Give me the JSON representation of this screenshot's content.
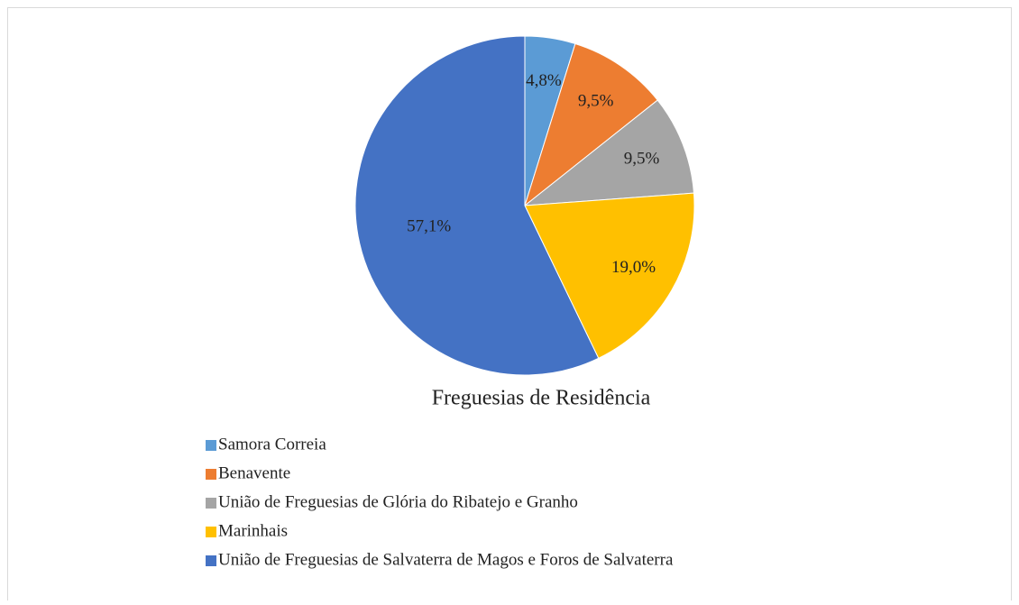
{
  "chart_data": {
    "type": "pie",
    "title": "Freguesias de Residência",
    "categories": [
      "Samora Correia",
      "Benavente",
      "União de Freguesias de Glória do Ribatejo e Granho",
      "Marinhais",
      "União de Freguesias de Salvaterra de Magos e Foros de Salvaterra"
    ],
    "values": [
      4.8,
      9.5,
      9.5,
      19.0,
      57.1
    ],
    "value_labels": [
      "4,8%",
      "9,5%",
      "9,5%",
      "19,0%",
      "57,1%"
    ],
    "colors": [
      "#5B9BD5",
      "#ED7D31",
      "#A5A5A5",
      "#FFC000",
      "#4472C4"
    ],
    "legend": "bottom-left"
  }
}
